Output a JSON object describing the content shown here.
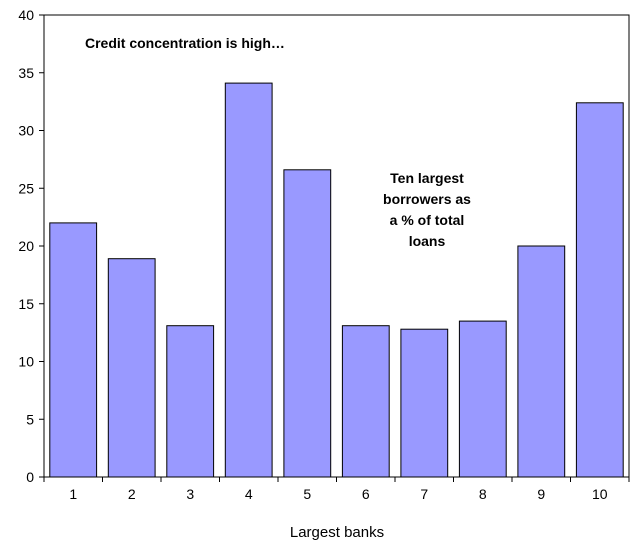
{
  "chart_data": {
    "type": "bar",
    "title": "",
    "xlabel": "Largest banks",
    "ylabel": "",
    "categories": [
      "1",
      "2",
      "3",
      "4",
      "5",
      "6",
      "7",
      "8",
      "9",
      "10"
    ],
    "values": [
      22.0,
      18.9,
      13.1,
      34.1,
      26.6,
      13.1,
      12.8,
      13.5,
      20.0,
      32.4
    ],
    "ylim": [
      0,
      40
    ],
    "yticks": [
      "0",
      "5",
      "10",
      "15",
      "20",
      "25",
      "30",
      "35",
      "40"
    ],
    "grid": false,
    "bar_color": "#9999ff",
    "bar_edge_color": "#000000",
    "annotations": [
      "Credit concentration is high…",
      "Ten largest",
      "borrowers as",
      "a % of total",
      "loans"
    ]
  }
}
